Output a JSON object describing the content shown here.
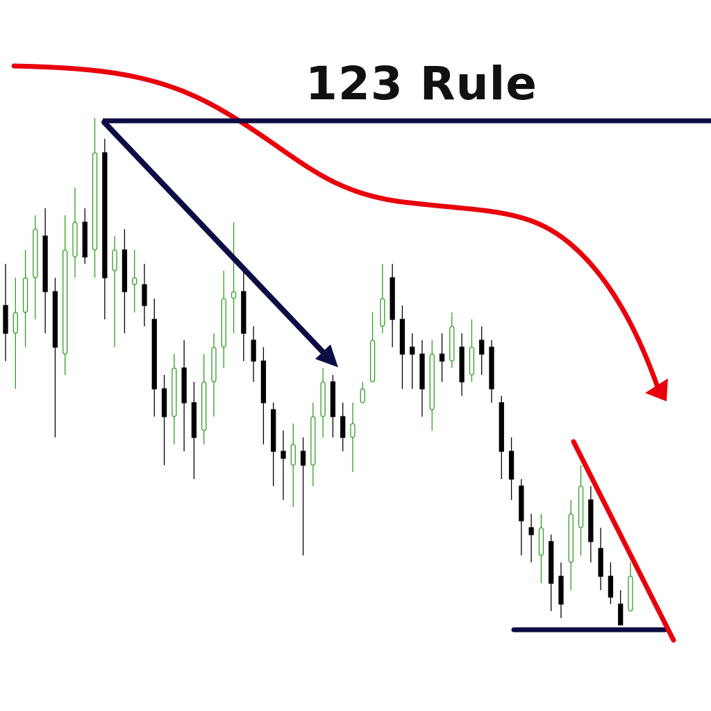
{
  "chart_data": {
    "type": "candlestick",
    "title": "123 Rule",
    "xlabel": "",
    "ylabel": "",
    "ylim": [
      0,
      100
    ],
    "grid": false,
    "up_color": "#2e9e1e",
    "down_color": "#000000",
    "annotation_colors": {
      "trend_curve": "#e8000b",
      "lines": "#0d0d45"
    },
    "candles": [
      {
        "o": 56,
        "h": 62,
        "l": 48,
        "c": 52
      },
      {
        "o": 52,
        "h": 60,
        "l": 44,
        "c": 55
      },
      {
        "o": 55,
        "h": 64,
        "l": 50,
        "c": 60
      },
      {
        "o": 60,
        "h": 69,
        "l": 54,
        "c": 67
      },
      {
        "o": 66,
        "h": 70,
        "l": 52,
        "c": 58
      },
      {
        "o": 58,
        "h": 60,
        "l": 37,
        "c": 50
      },
      {
        "o": 49,
        "h": 69,
        "l": 46,
        "c": 64
      },
      {
        "o": 63,
        "h": 73,
        "l": 60,
        "c": 68
      },
      {
        "o": 68,
        "h": 70,
        "l": 62,
        "c": 63
      },
      {
        "o": 64,
        "h": 83,
        "l": 60,
        "c": 78
      },
      {
        "o": 78,
        "h": 80,
        "l": 54,
        "c": 60
      },
      {
        "o": 61,
        "h": 66,
        "l": 50,
        "c": 64
      },
      {
        "o": 64,
        "h": 67,
        "l": 52,
        "c": 58
      },
      {
        "o": 59,
        "h": 64,
        "l": 55,
        "c": 60
      },
      {
        "o": 59,
        "h": 62,
        "l": 53,
        "c": 56
      },
      {
        "o": 54,
        "h": 57,
        "l": 40,
        "c": 44
      },
      {
        "o": 44,
        "h": 46,
        "l": 33,
        "c": 40
      },
      {
        "o": 40,
        "h": 49,
        "l": 36,
        "c": 47
      },
      {
        "o": 47,
        "h": 51,
        "l": 35,
        "c": 42
      },
      {
        "o": 42,
        "h": 45,
        "l": 31,
        "c": 37
      },
      {
        "o": 38,
        "h": 49,
        "l": 36,
        "c": 45
      },
      {
        "o": 45,
        "h": 52,
        "l": 40,
        "c": 50
      },
      {
        "o": 50,
        "h": 61,
        "l": 47,
        "c": 57
      },
      {
        "o": 57,
        "h": 68,
        "l": 52,
        "c": 58
      },
      {
        "o": 58,
        "h": 61,
        "l": 48,
        "c": 52
      },
      {
        "o": 51,
        "h": 53,
        "l": 45,
        "c": 48
      },
      {
        "o": 48,
        "h": 50,
        "l": 36,
        "c": 42
      },
      {
        "o": 41,
        "h": 42,
        "l": 30,
        "c": 35
      },
      {
        "o": 35,
        "h": 38,
        "l": 28,
        "c": 34
      },
      {
        "o": 33,
        "h": 39,
        "l": 27,
        "c": 36
      },
      {
        "o": 35,
        "h": 37,
        "l": 20,
        "c": 33
      },
      {
        "o": 33,
        "h": 42,
        "l": 30,
        "c": 40
      },
      {
        "o": 40,
        "h": 47,
        "l": 37,
        "c": 45
      },
      {
        "o": 45,
        "h": 46,
        "l": 37,
        "c": 40
      },
      {
        "o": 40,
        "h": 42,
        "l": 35,
        "c": 37
      },
      {
        "o": 37,
        "h": 42,
        "l": 32,
        "c": 39
      },
      {
        "o": 42,
        "h": 45,
        "l": 42,
        "c": 44
      },
      {
        "o": 45,
        "h": 55,
        "l": 45,
        "c": 51
      },
      {
        "o": 53,
        "h": 62,
        "l": 52,
        "c": 57
      },
      {
        "o": 60,
        "h": 62,
        "l": 50,
        "c": 54
      },
      {
        "o": 54,
        "h": 56,
        "l": 44,
        "c": 49
      },
      {
        "o": 50,
        "h": 52,
        "l": 44,
        "c": 49
      },
      {
        "o": 49,
        "h": 51,
        "l": 40,
        "c": 44
      },
      {
        "o": 41,
        "h": 51,
        "l": 38,
        "c": 49
      },
      {
        "o": 49,
        "h": 52,
        "l": 45,
        "c": 48
      },
      {
        "o": 48,
        "h": 55,
        "l": 47,
        "c": 53
      },
      {
        "o": 50,
        "h": 52,
        "l": 43,
        "c": 45
      },
      {
        "o": 46,
        "h": 54,
        "l": 45,
        "c": 50
      },
      {
        "o": 51,
        "h": 53,
        "l": 46,
        "c": 49
      },
      {
        "o": 50,
        "h": 51,
        "l": 42,
        "c": 44
      },
      {
        "o": 42,
        "h": 43,
        "l": 31,
        "c": 35
      },
      {
        "o": 35,
        "h": 37,
        "l": 28,
        "c": 31
      },
      {
        "o": 30,
        "h": 31,
        "l": 20,
        "c": 25
      },
      {
        "o": 24,
        "h": 26,
        "l": 19,
        "c": 23
      },
      {
        "o": 20,
        "h": 26,
        "l": 16,
        "c": 24
      },
      {
        "o": 22,
        "h": 23,
        "l": 12,
        "c": 16
      },
      {
        "o": 17,
        "h": 19,
        "l": 11,
        "c": 13
      },
      {
        "o": 19,
        "h": 28,
        "l": 15,
        "c": 26
      },
      {
        "o": 24,
        "h": 33,
        "l": 20,
        "c": 30
      },
      {
        "o": 28,
        "h": 30,
        "l": 19,
        "c": 22
      },
      {
        "o": 21,
        "h": 24,
        "l": 15,
        "c": 17
      },
      {
        "o": 17,
        "h": 19,
        "l": 13,
        "c": 14
      },
      {
        "o": 13,
        "h": 15,
        "l": 10,
        "c": 10
      },
      {
        "o": 12,
        "h": 19,
        "l": 12,
        "c": 17
      }
    ]
  }
}
